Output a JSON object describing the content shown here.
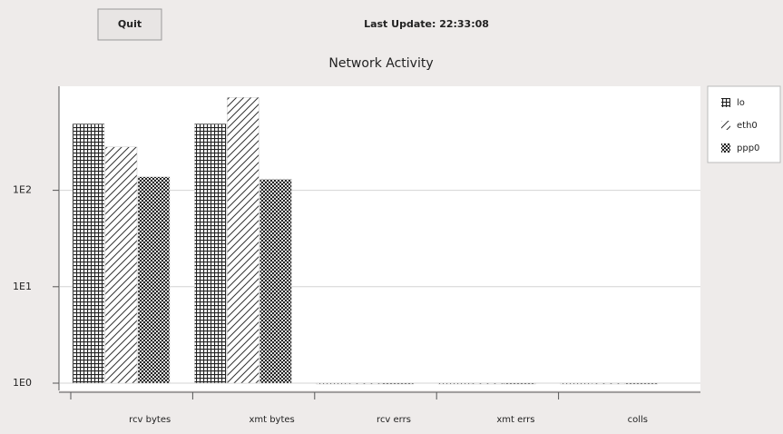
{
  "toolbar": {
    "quit": "Quit",
    "last_update": "Last Update: 22:33:08"
  },
  "chart_data": {
    "type": "bar",
    "title": "Network Activity",
    "categories": [
      "rcv bytes",
      "xmt bytes",
      "rcv errs",
      "xmt errs",
      "colls"
    ],
    "series": [
      {
        "name": "lo",
        "fill": "grid",
        "values": [
          490,
          490,
          1,
          1,
          1
        ]
      },
      {
        "name": "eth0",
        "fill": "hatch",
        "values": [
          282,
          920,
          1,
          1,
          1
        ]
      },
      {
        "name": "ppp0",
        "fill": "checker",
        "values": [
          138,
          130,
          1,
          1,
          1
        ]
      }
    ],
    "log_scale": true,
    "ylim": [
      1,
      1200
    ],
    "yticks": [
      {
        "value": 1,
        "label": "1E0"
      },
      {
        "value": 10,
        "label": "1E1"
      },
      {
        "value": 100,
        "label": "1E2"
      }
    ],
    "grid": true,
    "legend": "right"
  }
}
